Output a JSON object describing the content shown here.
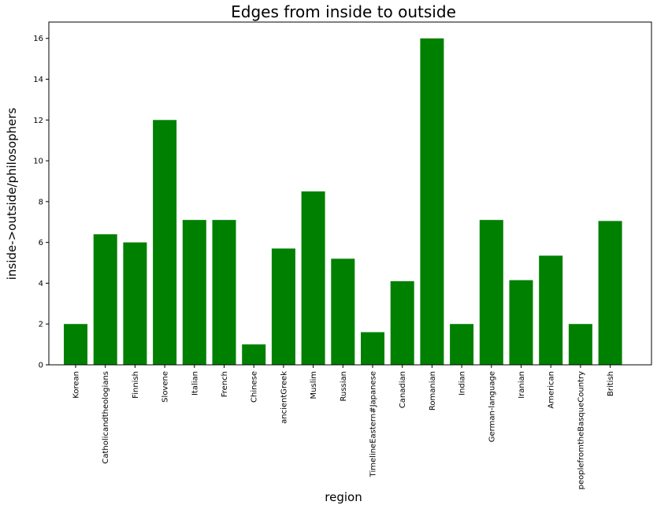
{
  "chart_data": {
    "type": "bar",
    "title": "Edges from inside to outside",
    "xlabel": "region",
    "ylabel": "inside->outside/philosophers",
    "categories": [
      "Korean",
      "Catholicandtheologians",
      "Finnish",
      "Slovene",
      "Italian",
      "French",
      "Chinese",
      "ancientGreek",
      "Muslim",
      "Russian",
      "TimelineEastern#Japanese",
      "Canadian",
      "Romanian",
      "Indian",
      "German-language",
      "Iranian",
      "American",
      "peoplefromtheBasqueCountry",
      "British"
    ],
    "values": [
      2.0,
      6.4,
      6.0,
      12.0,
      7.1,
      7.1,
      1.0,
      5.7,
      8.5,
      5.2,
      1.6,
      4.1,
      16.0,
      2.0,
      7.1,
      4.15,
      5.35,
      2.0,
      7.05
    ],
    "ylim": [
      0,
      16.8
    ],
    "yticks": [
      0,
      2,
      4,
      6,
      8,
      10,
      12,
      14,
      16
    ],
    "bar_color": "#008000",
    "grid": false
  }
}
